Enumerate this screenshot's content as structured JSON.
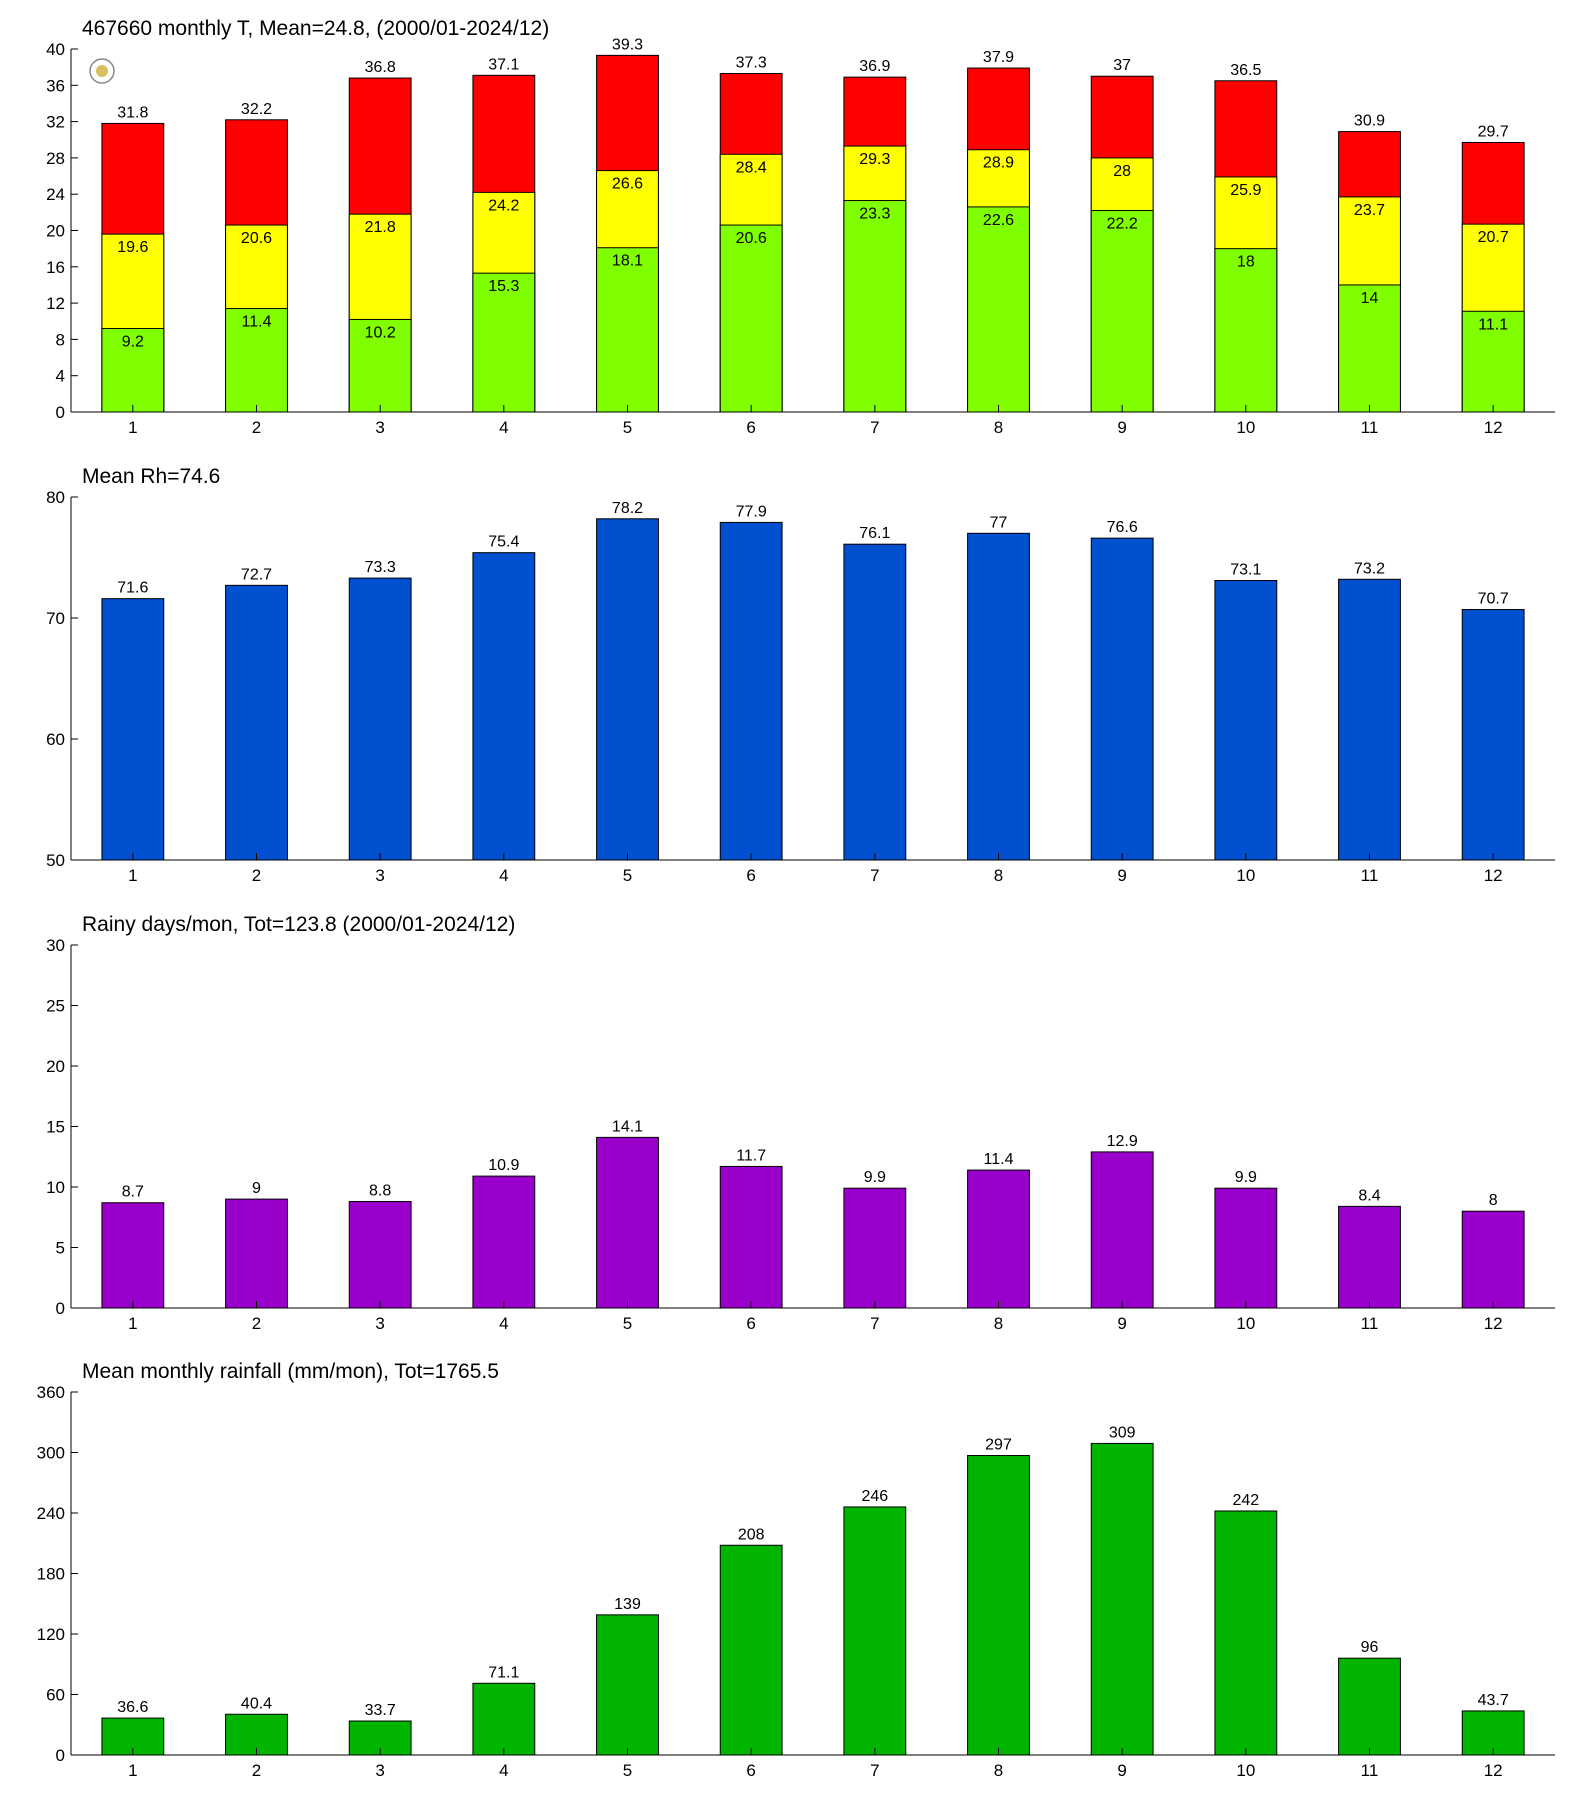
{
  "chart_data": [
    {
      "type": "bar",
      "title": "467660 monthly T, Mean=24.8, (2000/01-2024/12)",
      "categories": [
        "1",
        "2",
        "3",
        "4",
        "5",
        "6",
        "7",
        "8",
        "9",
        "10",
        "11",
        "12"
      ],
      "series": [
        {
          "color": "#ff0000",
          "values": [
            31.8,
            32.2,
            36.8,
            37.1,
            39.3,
            37.3,
            36.9,
            37.9,
            37,
            36.5,
            30.9,
            29.7
          ]
        },
        {
          "color": "#ffff00",
          "values": [
            19.6,
            20.6,
            21.8,
            24.2,
            26.6,
            28.4,
            29.3,
            28.9,
            28,
            25.9,
            23.7,
            20.7
          ]
        },
        {
          "color": "#80ff00",
          "values": [
            9.2,
            11.4,
            10.2,
            15.3,
            18.1,
            20.6,
            23.3,
            22.6,
            22.2,
            18,
            14,
            11.1
          ]
        }
      ],
      "ylim": [
        0,
        40
      ],
      "yticks": [
        0,
        4,
        8,
        12,
        16,
        20,
        24,
        28,
        32,
        36,
        40
      ]
    },
    {
      "type": "bar",
      "title": "Mean Rh=74.6",
      "categories": [
        "1",
        "2",
        "3",
        "4",
        "5",
        "6",
        "7",
        "8",
        "9",
        "10",
        "11",
        "12"
      ],
      "series": [
        {
          "color": "#0050d0",
          "values": [
            71.6,
            72.7,
            73.3,
            75.4,
            78.2,
            77.9,
            76.1,
            77,
            76.6,
            73.1,
            73.2,
            70.7
          ]
        }
      ],
      "ylim": [
        50,
        80
      ],
      "yticks": [
        50,
        60,
        70,
        80
      ]
    },
    {
      "type": "bar",
      "title": "Rainy days/mon, Tot=123.8 (2000/01-2024/12)",
      "categories": [
        "1",
        "2",
        "3",
        "4",
        "5",
        "6",
        "7",
        "8",
        "9",
        "10",
        "11",
        "12"
      ],
      "series": [
        {
          "color": "#9900cc",
          "values": [
            8.7,
            9,
            8.8,
            10.9,
            14.1,
            11.7,
            9.9,
            11.4,
            12.9,
            9.9,
            8.4,
            8
          ]
        }
      ],
      "ylim": [
        0,
        30
      ],
      "yticks": [
        0,
        5,
        10,
        15,
        20,
        25,
        30
      ]
    },
    {
      "type": "bar",
      "title": "Mean monthly rainfall (mm/mon), Tot=1765.5",
      "categories": [
        "1",
        "2",
        "3",
        "4",
        "5",
        "6",
        "7",
        "8",
        "9",
        "10",
        "11",
        "12"
      ],
      "series": [
        {
          "color": "#00b400",
          "values": [
            36.6,
            40.4,
            33.7,
            71.1,
            139,
            208,
            246,
            297,
            309,
            242,
            96,
            43.7
          ]
        }
      ],
      "ylim": [
        0,
        360
      ],
      "yticks": [
        0,
        60,
        120,
        180,
        240,
        300,
        360
      ]
    }
  ]
}
